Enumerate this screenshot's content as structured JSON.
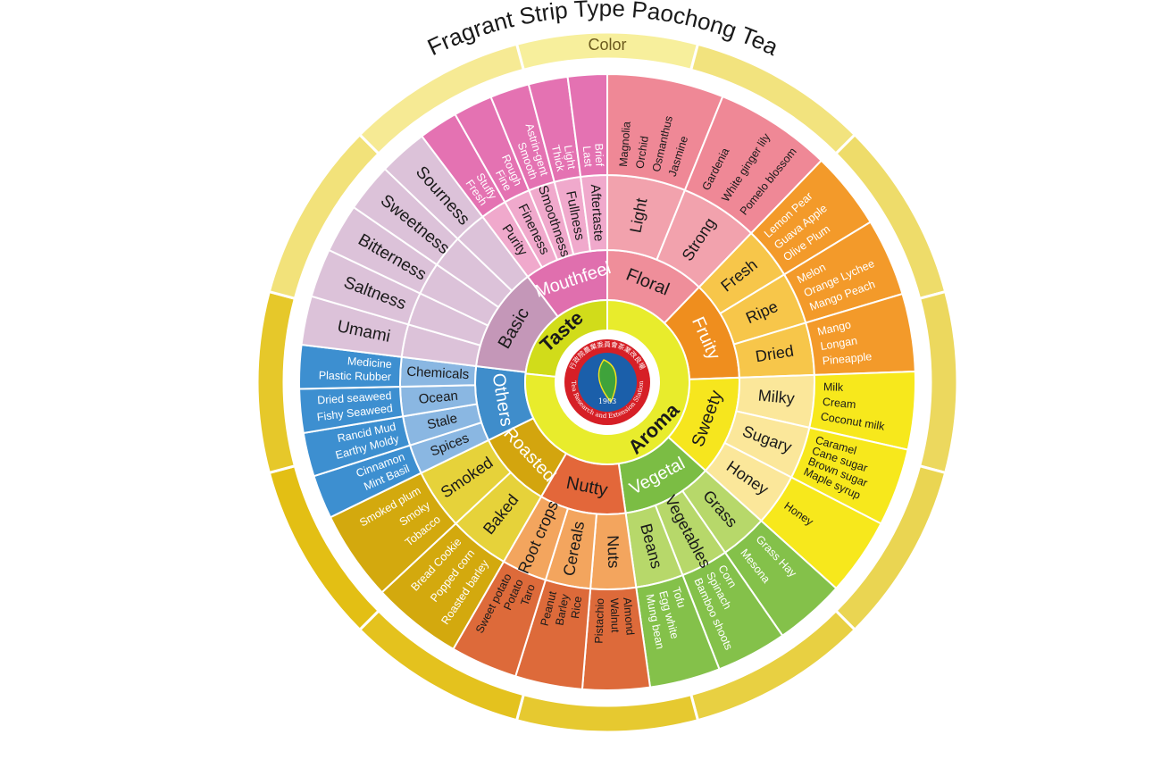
{
  "title": "Fragrant Strip Type Paochong Tea",
  "color_ring": {
    "label": "Color",
    "segments": [
      {
        "color": "#f7ef9c"
      },
      {
        "color": "#f2e37e"
      },
      {
        "color": "#eedc6a"
      },
      {
        "color": "#ecd85e"
      },
      {
        "color": "#ead552"
      },
      {
        "color": "#e8d042"
      },
      {
        "color": "#e6c930"
      },
      {
        "color": "#e4c21e"
      },
      {
        "color": "#e3bf14"
      },
      {
        "color": "#e6c82a"
      },
      {
        "color": "#f2e27a"
      },
      {
        "color": "#f6ea94"
      }
    ]
  },
  "center": {
    "taste_label": "Taste",
    "aroma_label": "Aroma",
    "taste_color": "#d1dc1a",
    "aroma_color": "#e8ec2c",
    "logo": {
      "year": "1903",
      "text_bottom": "Tea Research and Extension Station",
      "text_top": "行政院農業委員會茶業改良場"
    }
  },
  "wheel": [
    {
      "name": "Floral",
      "color": "#ef8e9a",
      "mid": "#f2a2ad",
      "outer": "#ef8896",
      "text": "#1a1a1a",
      "subs": [
        {
          "name": "Light",
          "words": [
            "Magnolia",
            "Orchid",
            "Osmanthus",
            "Jasmine"
          ]
        },
        {
          "name": "Strong",
          "words": [
            "Gardenia",
            "White ginger lily",
            "Pomelo blossom"
          ]
        }
      ]
    },
    {
      "name": "Fruity",
      "color": "#ef8e1e",
      "mid": "#f7c64a",
      "outer": "#f39a2a",
      "text": "#ffffff",
      "subtext": "#1a1a1a",
      "wordtext": "#ffffff",
      "subs": [
        {
          "name": "Fresh",
          "words": [
            "Lemon  Pear",
            "Guava  Apple",
            "Olive  Plum"
          ]
        },
        {
          "name": "Ripe",
          "words": [
            "Melon",
            "Orange Lychee",
            "Mango  Peach"
          ]
        },
        {
          "name": "Dried",
          "words": [
            "Mango",
            "Longan",
            "Pineapple"
          ]
        }
      ]
    },
    {
      "name": "Sweety",
      "color": "#f6e61e",
      "mid": "#fbe79a",
      "outer": "#f7e81c",
      "text": "#1a1a1a",
      "subs": [
        {
          "name": "Milky",
          "words": [
            "Milk",
            "Cream",
            "Coconut milk"
          ]
        },
        {
          "name": "Sugary",
          "words": [
            "Caramel",
            "Cane sugar",
            "Brown sugar",
            "Maple syrup"
          ]
        },
        {
          "name": "Honey",
          "words": [
            "Honey"
          ]
        }
      ]
    },
    {
      "name": "Vegetal",
      "color": "#7bbd44",
      "mid": "#b7d86a",
      "outer": "#84c14a",
      "text": "#ffffff",
      "subtext": "#1a1a1a",
      "wordtext": "#ffffff",
      "subs": [
        {
          "name": "Grass",
          "words": [
            "Grass  Hay",
            "Mesona"
          ]
        },
        {
          "name": "Vegetables",
          "words": [
            "Corn",
            "Spinach",
            "Bamboo shoots"
          ]
        },
        {
          "name": "Beans",
          "words": [
            "Tofu",
            "Egg white",
            "Mung bean"
          ]
        }
      ]
    },
    {
      "name": "Nutty",
      "color": "#e3673a",
      "mid": "#f3a55e",
      "outer": "#dd6a3a",
      "text": "#1a1a1a",
      "subs": [
        {
          "name": "Nuts",
          "words": [
            "Almond",
            "Walnut",
            "Pistachio"
          ]
        },
        {
          "name": "Cereals",
          "words": [
            "Rice",
            "Barley",
            "Peanut"
          ]
        },
        {
          "name": "Root crops",
          "words": [
            "Taro",
            "Potato",
            "Sweet potato"
          ]
        }
      ]
    },
    {
      "name": "Roasted",
      "color": "#d3a50e",
      "mid": "#e6d23a",
      "outer": "#d3a90e",
      "text": "#ffffff",
      "subtext": "#1a1a1a",
      "wordtext": "#ffffff",
      "subs": [
        {
          "name": "Baked",
          "words": [
            "Roasted barley",
            "Popped corn",
            "Bread  Cookie"
          ]
        },
        {
          "name": "Smoked",
          "words": [
            "Tobacco",
            "Smoky",
            "Smoked plum"
          ]
        }
      ]
    },
    {
      "name": "Others",
      "color": "#3f8dcb",
      "mid": "#8ab7e2",
      "outer": "#3d8fd0",
      "text": "#ffffff",
      "subtext": "#1a1a1a",
      "wordtext": "#ffffff",
      "subs": [
        {
          "name": "Spices",
          "words": [
            "Mint  Basil",
            "Cinnamon"
          ]
        },
        {
          "name": "Stale",
          "words": [
            "Earthy  Moldy",
            "Rancid  Mud"
          ]
        },
        {
          "name": "Ocean",
          "words": [
            "Fishy  Seaweed",
            "Dried seaweed"
          ]
        },
        {
          "name": "Chemicals",
          "words": [
            "Plastic  Rubber",
            "Medicine"
          ]
        }
      ]
    },
    {
      "name": "Basic",
      "color": "#c497b8",
      "mid": "#dcc2d9",
      "outer": "#dcc2d9",
      "text": "#1a1a1a",
      "subs": [
        {
          "name": "Umami",
          "words": []
        },
        {
          "name": "Saltness",
          "words": []
        },
        {
          "name": "Bitterness",
          "words": []
        },
        {
          "name": "Sweetness",
          "words": []
        },
        {
          "name": "Sourness",
          "words": []
        }
      ]
    },
    {
      "name": "Mouthfeel",
      "color": "#e06fae",
      "mid": "#f0a9cc",
      "outer": "#e472b2",
      "text": "#ffffff",
      "subtext": "#1a1a1a",
      "wordtext": "#ffffff",
      "subs": [
        {
          "name": "Purity",
          "words": [
            "Fresh",
            "Stuffy"
          ]
        },
        {
          "name": "Fineness",
          "words": [
            "Fine",
            "Rough"
          ]
        },
        {
          "name": "Smoothness",
          "words": [
            "Smooth",
            "Astrin-gent"
          ]
        },
        {
          "name": "Fullness",
          "words": [
            "Thick",
            "Light"
          ]
        },
        {
          "name": "Aftertaste",
          "words": [
            "Last",
            "Brief"
          ]
        }
      ]
    }
  ]
}
